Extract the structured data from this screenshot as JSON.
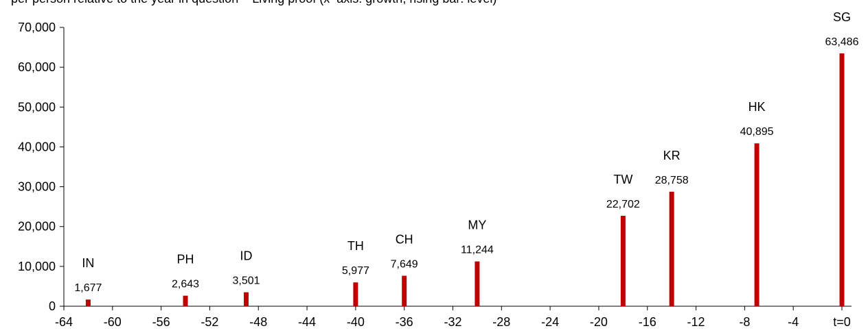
{
  "caption": "per person relative to the year in question – Living proof (x–axis: growth, rising bar: level)",
  "chart_data": {
    "type": "bar",
    "xlim": [
      -64,
      0
    ],
    "ylim": [
      0,
      70000
    ],
    "x_ticks": [
      "-64",
      "-60",
      "-56",
      "-52",
      "-48",
      "-44",
      "-40",
      "-36",
      "-32",
      "-28",
      "-24",
      "-20",
      "-16",
      "-12",
      "-8",
      "-4",
      "t=0"
    ],
    "y_ticks": [
      "0",
      "10,000",
      "20,000",
      "30,000",
      "40,000",
      "50,000",
      "60,000",
      "70,000"
    ],
    "bar_color": "#c00000",
    "series": [
      {
        "points": [
          {
            "country": "IN",
            "x": -62,
            "value": 1677,
            "label": "1,677"
          },
          {
            "country": "PH",
            "x": -54,
            "value": 2643,
            "label": "2,643"
          },
          {
            "country": "ID",
            "x": -49,
            "value": 3501,
            "label": "3,501"
          },
          {
            "country": "TH",
            "x": -40,
            "value": 5977,
            "label": "5,977"
          },
          {
            "country": "CH",
            "x": -36,
            "value": 7649,
            "label": "7,649"
          },
          {
            "country": "MY",
            "x": -30,
            "value": 11244,
            "label": "11,244"
          },
          {
            "country": "TW",
            "x": -18,
            "value": 22702,
            "label": "22,702"
          },
          {
            "country": "KR",
            "x": -14,
            "value": 28758,
            "label": "28,758"
          },
          {
            "country": "HK",
            "x": -7,
            "value": 40895,
            "label": "40,895"
          },
          {
            "country": "SG",
            "x": 0,
            "value": 63486,
            "label": "63,486"
          }
        ]
      }
    ]
  }
}
